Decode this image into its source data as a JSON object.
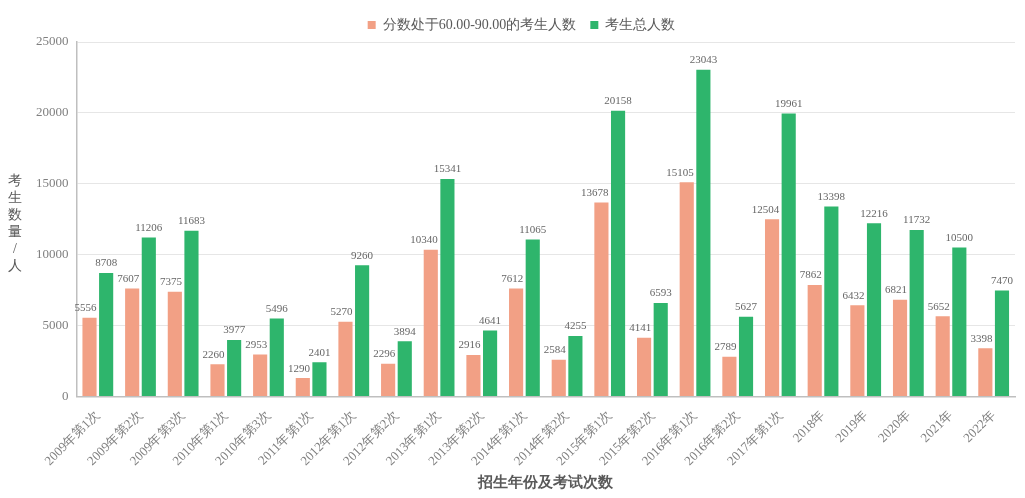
{
  "chart_data": {
    "type": "bar",
    "xlabel": "招生年份及考试次数",
    "ylabel": "考生数量/人",
    "categories": [
      "2009年第1次",
      "2009年第2次",
      "2009年第3次",
      "2010年第1次",
      "2010年第3次",
      "2011年第1次",
      "2012年第1次",
      "2012年第2次",
      "2013年第1次",
      "2013年第2次",
      "2014年第1次",
      "2014年第2次",
      "2015年第1次",
      "2015年第2次",
      "2016年第1次",
      "2016年第2次",
      "2017年第1次",
      "2018年",
      "2019年",
      "2020年",
      "2021年",
      "2022年"
    ],
    "series": [
      {
        "name": "分数处于60.00-90.00的考生人数",
        "color": "#f2a085",
        "values": [
          5556,
          7607,
          7375,
          2260,
          2953,
          1290,
          5270,
          2296,
          10340,
          2916,
          7612,
          2584,
          13678,
          4141,
          15105,
          2789,
          12504,
          7862,
          6432,
          6821,
          5652,
          3398
        ]
      },
      {
        "name": "考生总人数",
        "color": "#2eb56c",
        "values": [
          8708,
          11206,
          11683,
          3977,
          5496,
          2401,
          9260,
          3894,
          15341,
          4641,
          11065,
          4255,
          20158,
          6593,
          23043,
          5627,
          19961,
          13398,
          12216,
          11732,
          10500,
          7470
        ]
      }
    ],
    "ylim": [
      0,
      25000
    ],
    "yticks": [
      0,
      5000,
      10000,
      15000,
      20000,
      25000
    ],
    "grid": "y",
    "legend": "top",
    "data_labels": true
  }
}
